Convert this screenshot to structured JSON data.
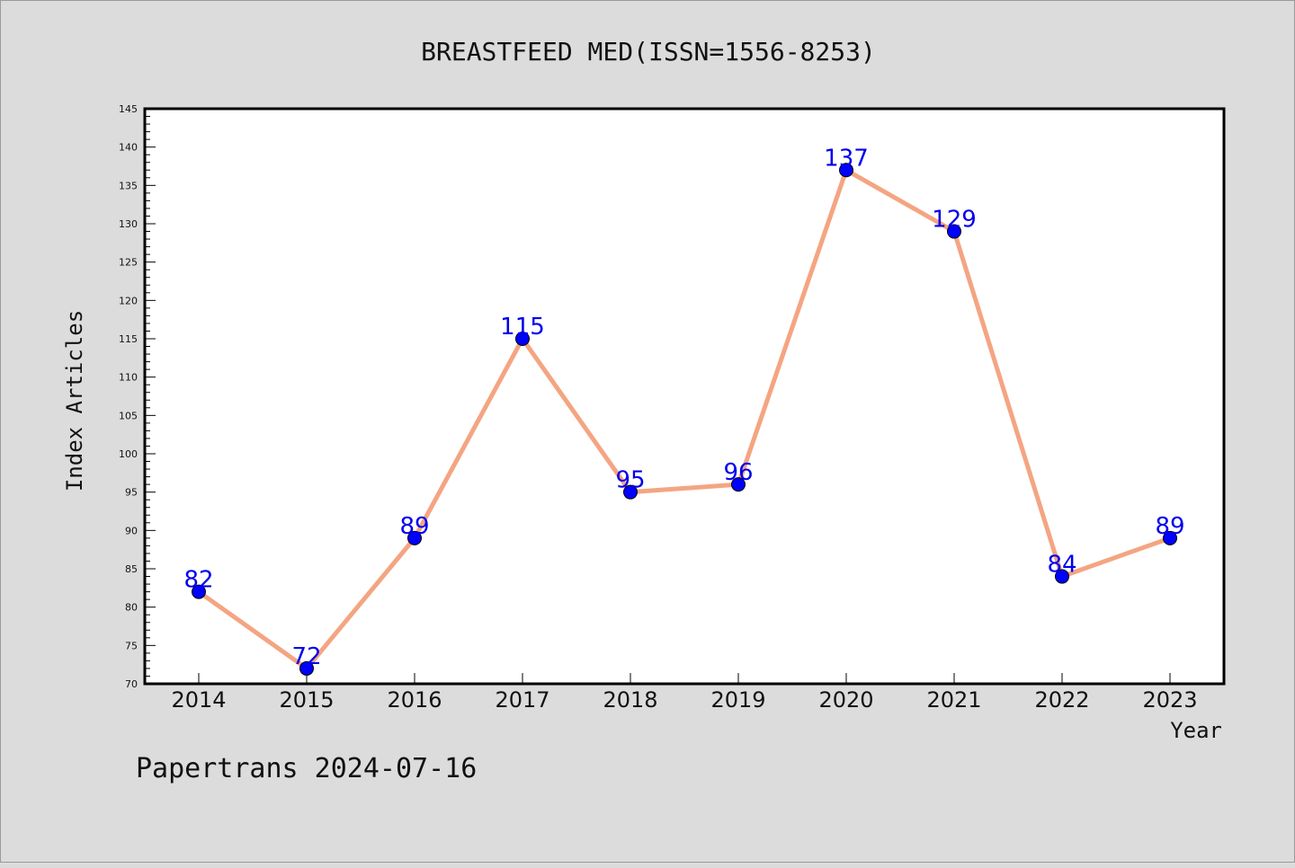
{
  "chart_data": {
    "type": "line",
    "title": "BREASTFEED MED(ISSN=1556-8253)",
    "xlabel": "Year",
    "ylabel": "Index Articles",
    "categories": [
      "2014",
      "2015",
      "2016",
      "2017",
      "2018",
      "2019",
      "2020",
      "2021",
      "2022",
      "2023"
    ],
    "series": [
      {
        "values": [
          82,
          72,
          89,
          115,
          95,
          96,
          137,
          129,
          84,
          89
        ]
      }
    ],
    "ylim": [
      70,
      145
    ],
    "ytick_step": 5,
    "line_color": "#f4a582",
    "marker_color": "#0000ff",
    "label_color": "#0000ee",
    "grid": false,
    "data_labels": true
  },
  "footer": "Papertrans 2024-07-16"
}
